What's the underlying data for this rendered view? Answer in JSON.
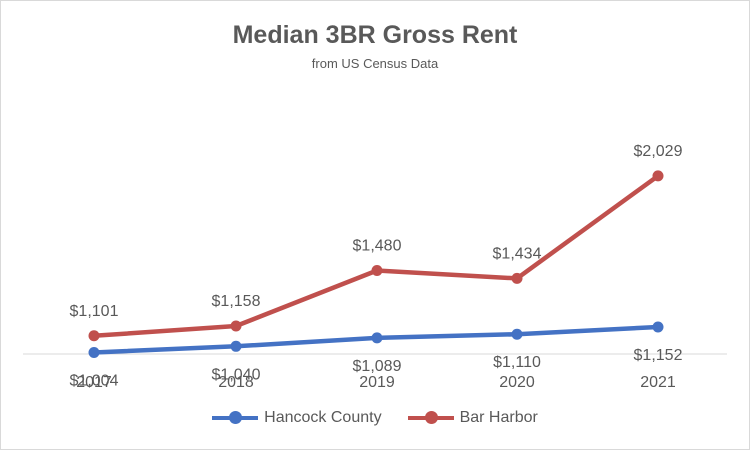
{
  "title": "Median 3BR Gross Rent",
  "subtitle": "from US Census Data",
  "chart_data": {
    "type": "line",
    "title": "Median 3BR Gross Rent",
    "subtitle": "from US Census Data",
    "categories": [
      "2017",
      "2018",
      "2019",
      "2020",
      "2021"
    ],
    "series": [
      {
        "name": "Hancock County",
        "color": "#4472c4",
        "values": [
          1004,
          1040,
          1089,
          1110,
          1152
        ],
        "labels": [
          "$1,004",
          "$1,040",
          "$1,089",
          "$1,110",
          "$1,152"
        ],
        "label_position": "below"
      },
      {
        "name": "Bar Harbor",
        "color": "#c0504d",
        "values": [
          1101,
          1158,
          1480,
          1434,
          2029
        ],
        "labels": [
          "$1,101",
          "$1,158",
          "$1,480",
          "$1,434",
          "$2,029"
        ],
        "label_position": "above"
      }
    ],
    "ylim": [
      0,
      2500
    ],
    "grid": false,
    "legend": "bottom"
  }
}
